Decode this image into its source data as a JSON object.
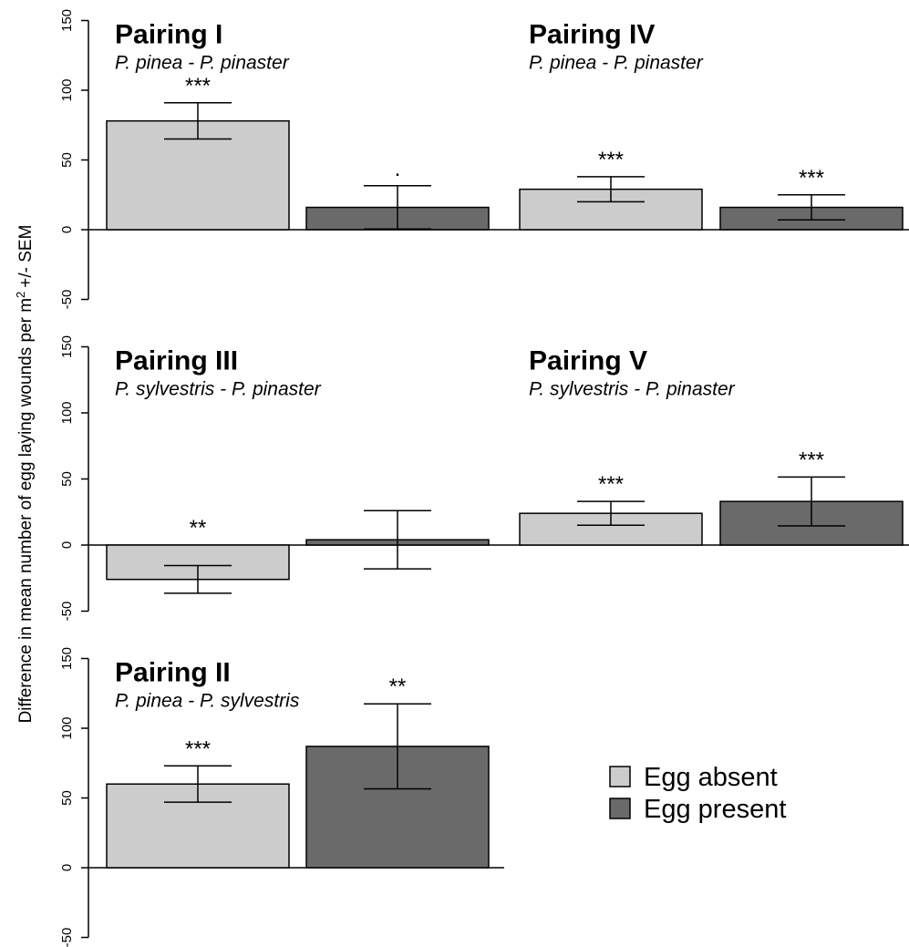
{
  "chart_data": {
    "type": "bar",
    "ylabel_main": "Difference in mean number of egg laying wounds per m",
    "ylabel_sup": "2",
    "ylabel_tail": "+/- SEM",
    "yticks": [
      -50,
      0,
      50,
      100,
      150
    ],
    "ylim": [
      -50,
      150
    ],
    "legend": {
      "placement": "bottom-right",
      "entries": [
        {
          "name": "Egg absent",
          "color": "#cccccc"
        },
        {
          "name": "Egg present",
          "color": "#6a6a6a"
        }
      ]
    },
    "series": [
      {
        "name": "Egg absent",
        "color": "#cccccc"
      },
      {
        "name": "Egg present",
        "color": "#6a6a6a"
      }
    ],
    "panels": [
      {
        "id": "pairing-i",
        "title": "Pairing I",
        "subtitle": "P. pinea - P. pinaster",
        "bars": [
          {
            "series": 0,
            "value": 78,
            "sem": 13,
            "sig": "***"
          },
          {
            "series": 1,
            "value": 16,
            "sem": 15.5,
            "sig": "."
          }
        ]
      },
      {
        "id": "pairing-iv",
        "title": "Pairing IV",
        "subtitle": "P. pinea - P. pinaster",
        "bars": [
          {
            "series": 0,
            "value": 29,
            "sem": 9,
            "sig": "***"
          },
          {
            "series": 1,
            "value": 16,
            "sem": 9,
            "sig": "***"
          }
        ]
      },
      {
        "id": "pairing-iii",
        "title": "Pairing III",
        "subtitle": "P. sylvestris - P. pinaster",
        "bars": [
          {
            "series": 0,
            "value": -26,
            "sem": 10.5,
            "sig": "**"
          },
          {
            "series": 1,
            "value": 4,
            "sem": 22,
            "sig": ""
          }
        ]
      },
      {
        "id": "pairing-v",
        "title": "Pairing V",
        "subtitle": "P. sylvestris - P. pinaster",
        "bars": [
          {
            "series": 0,
            "value": 24,
            "sem": 9,
            "sig": "***"
          },
          {
            "series": 1,
            "value": 33,
            "sem": 18.5,
            "sig": "***"
          }
        ]
      },
      {
        "id": "pairing-ii",
        "title": "Pairing II",
        "subtitle": "P. pinea - P. sylvestris",
        "bars": [
          {
            "series": 0,
            "value": 60,
            "sem": 13,
            "sig": "***"
          },
          {
            "series": 1,
            "value": 87,
            "sem": 30.5,
            "sig": "**"
          }
        ]
      }
    ]
  }
}
